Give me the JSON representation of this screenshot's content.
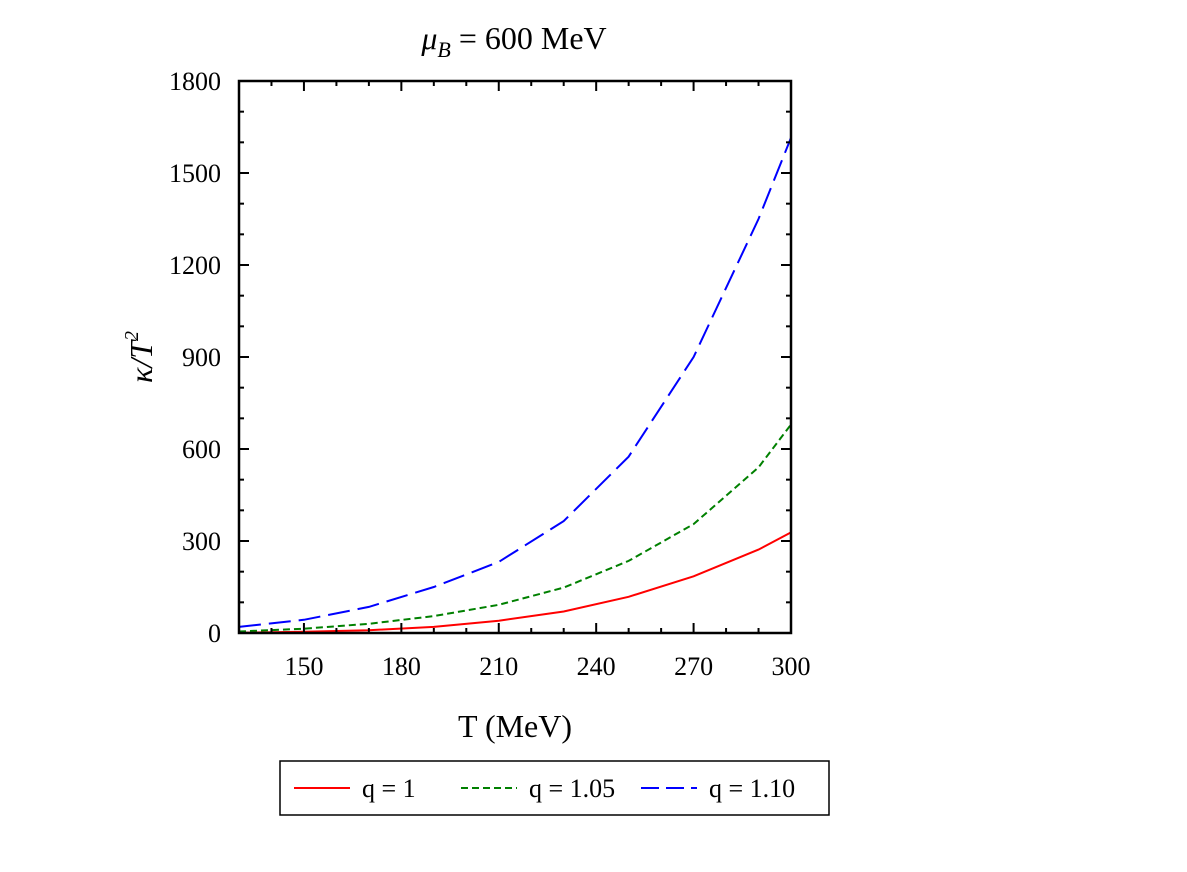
{
  "chart_data": {
    "type": "line",
    "title_symbol": "μ",
    "title_subscript": "B",
    "title_rest": " = 600 MeV",
    "xlabel": "T (MeV)",
    "ylabel_main": "κ/T",
    "ylabel_sup": "2",
    "xlim": [
      130,
      300
    ],
    "ylim": [
      0,
      1800
    ],
    "xticks": [
      150,
      180,
      210,
      240,
      270,
      300
    ],
    "yticks": [
      0,
      300,
      600,
      900,
      1200,
      1500,
      1800
    ],
    "x_minor_step": 10,
    "y_minor_step": 100,
    "legend_position": "bottom-center",
    "grid": false,
    "series": [
      {
        "name": "q = 1",
        "color": "#ff0000",
        "dash": "solid",
        "x": [
          130,
          150,
          170,
          190,
          210,
          230,
          250,
          270,
          290,
          300
        ],
        "y": [
          1,
          4,
          9,
          20,
          40,
          70,
          118,
          185,
          272,
          328
        ]
      },
      {
        "name": "q = 1.05",
        "color": "#008000",
        "dash": "short-dash",
        "x": [
          130,
          150,
          170,
          190,
          210,
          230,
          250,
          270,
          290,
          300
        ],
        "y": [
          5,
          14,
          30,
          55,
          92,
          148,
          235,
          355,
          540,
          680
        ]
      },
      {
        "name": "q = 1.10",
        "color": "#0000ff",
        "dash": "long-dash",
        "x": [
          130,
          150,
          170,
          190,
          210,
          230,
          250,
          270,
          290,
          300
        ],
        "y": [
          20,
          43,
          85,
          150,
          232,
          365,
          575,
          900,
          1350,
          1615
        ]
      }
    ]
  }
}
